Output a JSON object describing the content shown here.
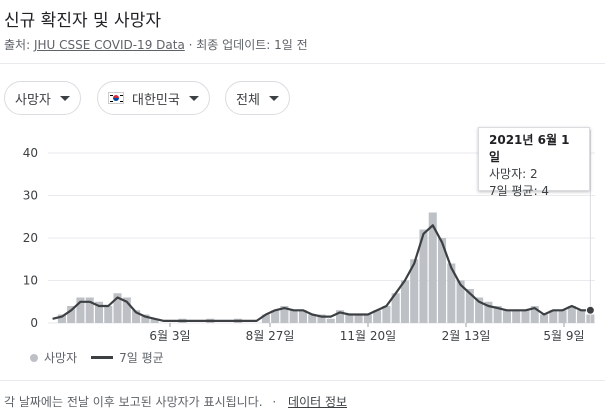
{
  "header": {
    "title": "신규 확진자 및 사망자",
    "source_prefix": "출처: ",
    "source_link": "JHU CSSE COVID-19 Data",
    "update_text": " · 최종 업데이트: 1일 전"
  },
  "filters": {
    "metric": "사망자",
    "country": "대한민국",
    "range": "전체"
  },
  "tooltip": {
    "date": "2021년 6월 1일",
    "deaths": "사망자: 2",
    "avg": "7일 평균: 4"
  },
  "legend": {
    "bars": "사망자",
    "line": "7일 평균"
  },
  "footer": {
    "note": "각 날짜에는 전날 이후 보고된 사망자가 표시됩니다.",
    "separator": "·",
    "info_link": "데이터 정보"
  },
  "colors": {
    "bar": "#bdc1c6",
    "line": "#3c4043",
    "grid": "#e8eaed"
  },
  "chart_data": {
    "type": "bar",
    "x_tick_labels": [
      "6월 3일",
      "8월 27일",
      "11월 20일",
      "2월 13일",
      "5월 9일"
    ],
    "ylim": [
      0,
      40
    ],
    "y_ticks": [
      0,
      10,
      20,
      30,
      40
    ],
    "series": [
      {
        "name": "사망자",
        "type": "bar",
        "approx_weekly_values": [
          0,
          2,
          4,
          6,
          6,
          5,
          4,
          7,
          6,
          3,
          2,
          1,
          0,
          0,
          1,
          0,
          0,
          1,
          0,
          0,
          1,
          0,
          0,
          2,
          3,
          4,
          3,
          3,
          2,
          2,
          1,
          3,
          2,
          2,
          2,
          3,
          4,
          7,
          10,
          15,
          22,
          26,
          20,
          14,
          10,
          8,
          6,
          5,
          4,
          3,
          3,
          3,
          4,
          2,
          3,
          3,
          4,
          3,
          2
        ]
      },
      {
        "name": "7일 평균",
        "type": "line",
        "approx_weekly_values": [
          1,
          1.5,
          3,
          5,
          5,
          4,
          4,
          6,
          5,
          2.5,
          1.5,
          1,
          0.5,
          0.5,
          0.5,
          0.5,
          0.5,
          0.5,
          0.5,
          0.5,
          0.5,
          0.5,
          0.5,
          2,
          3,
          3.5,
          3,
          3,
          2,
          1.5,
          1.5,
          2.5,
          2,
          2,
          2,
          3,
          4,
          7,
          10,
          14,
          21,
          23,
          19,
          13,
          9,
          7,
          5,
          4,
          3.5,
          3,
          3,
          3,
          3.5,
          2,
          3,
          3,
          4,
          3,
          3
        ]
      }
    ]
  }
}
